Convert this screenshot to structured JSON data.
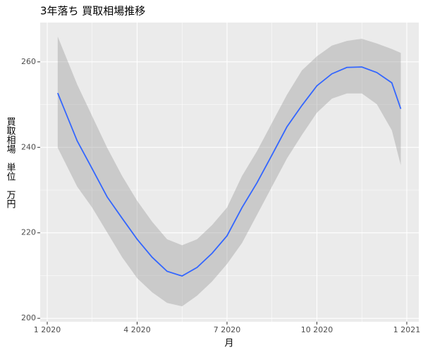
{
  "chart_data": {
    "type": "smooth",
    "title": "3年落ち 買取相場推移",
    "x_label": "月",
    "y_label": "買取相場　単位　万円",
    "x": [
      0.35,
      1,
      1.5,
      2,
      2.5,
      3,
      3.5,
      4,
      4.5,
      5,
      5.5,
      6,
      6.5,
      7,
      7.5,
      8,
      8.5,
      9,
      9.5,
      10,
      10.5,
      11,
      11.5,
      11.8
    ],
    "values": [
      252.7,
      241.5,
      235,
      228.4,
      223.4,
      218.5,
      214.3,
      211,
      209.9,
      211.9,
      215.2,
      219.3,
      225.9,
      231.7,
      238.2,
      244.8,
      249.8,
      254.4,
      257.2,
      258.7,
      258.8,
      257.5,
      255.1,
      249
    ],
    "upper": [
      265.9,
      254.7,
      247.3,
      239.9,
      233.3,
      227.5,
      222.6,
      218.5,
      217.1,
      218.5,
      221.8,
      225.9,
      233.3,
      239.1,
      245.7,
      252.3,
      258,
      261.3,
      263.8,
      264.9,
      265.4,
      264.3,
      263,
      262.1
    ],
    "lower": [
      239.9,
      230.8,
      225.9,
      220.1,
      214.3,
      209.4,
      206.1,
      203.6,
      202.8,
      205.3,
      208.6,
      212.7,
      217.6,
      224.2,
      230.8,
      237.4,
      242.9,
      248.1,
      251.4,
      252.6,
      252.6,
      250.1,
      244,
      235.8
    ],
    "color": "#3366ff",
    "band_color": "#999999",
    "xlim": [
      -0.235,
      12.4
    ],
    "ylim": [
      199.2,
      269.2
    ],
    "xticks": [
      {
        "value": 0,
        "label": "1 2020"
      },
      {
        "value": 3,
        "label": "4 2020"
      },
      {
        "value": 6,
        "label": "7 2020"
      },
      {
        "value": 9,
        "label": "10 2020"
      },
      {
        "value": 12,
        "label": "1 2021"
      }
    ],
    "yticks": [
      200,
      220,
      240,
      260
    ],
    "grid": true
  }
}
